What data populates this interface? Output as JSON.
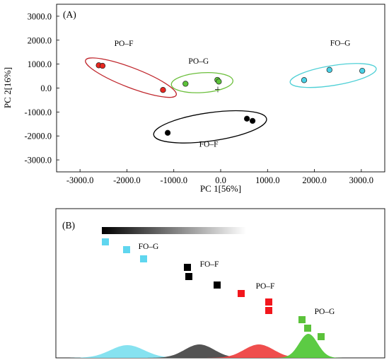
{
  "figure": {
    "panel_a_label": "(A)",
    "panel_b_label": "(B)"
  },
  "chart_data": [
    {
      "type": "scatter",
      "panel": "(A)",
      "xlabel": "PC 1[56%]",
      "ylabel": "PC 2[16%]",
      "xlim": [
        -3500,
        3500
      ],
      "ylim": [
        -3500,
        3500
      ],
      "x_ticks": [
        "-3000.0",
        "-2000.0",
        "-1000.0",
        "0.0",
        "1000.0",
        "2000.0",
        "3000.0"
      ],
      "y_ticks": [
        "3000.0",
        "2000.0",
        "1000.0",
        "0.0",
        "-1000.0",
        "-2000.0",
        "-3000.0"
      ],
      "grid": false,
      "origin_marker": "+",
      "series": [
        {
          "name": "PO–F",
          "color": "#e8261f",
          "ellipse_color": "#c0272d",
          "points": [
            [
              -2600,
              950
            ],
            [
              -2520,
              930
            ],
            [
              -1230,
              -80
            ]
          ]
        },
        {
          "name": "PO–G",
          "color": "#5cc23a",
          "ellipse_color": "#6cbf3c",
          "points": [
            [
              -750,
              180
            ],
            [
              -70,
              340
            ],
            [
              -40,
              270
            ]
          ]
        },
        {
          "name": "FO–G",
          "color": "#49d1e6",
          "ellipse_color": "#4fd0d6",
          "points": [
            [
              1780,
              330
            ],
            [
              2320,
              760
            ],
            [
              3020,
              720
            ]
          ]
        },
        {
          "name": "FO–F",
          "color": "#000000",
          "ellipse_color": "#000000",
          "points": [
            [
              -1130,
              -1870
            ],
            [
              560,
              -1280
            ],
            [
              680,
              -1370
            ]
          ]
        }
      ]
    },
    {
      "type": "scatter",
      "panel": "(B)",
      "gradient_bar": true,
      "groups": [
        {
          "name": "FO–G",
          "color": "#5fd6ef",
          "curve_color": "#7fe0ef"
        },
        {
          "name": "FO–F",
          "color": "#000000",
          "curve_color": "#4a4a4a"
        },
        {
          "name": "PO–F",
          "color": "#f2161c",
          "curve_color": "#ee4443"
        },
        {
          "name": "PO–G",
          "color": "#5bc23a",
          "curve_color": "#53c83a"
        }
      ]
    }
  ]
}
